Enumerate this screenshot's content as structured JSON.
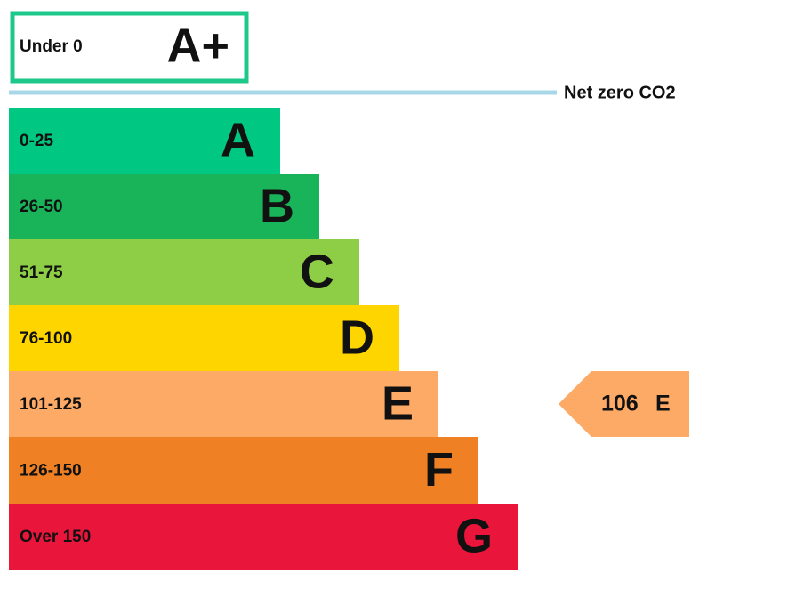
{
  "rating_plus": {
    "range": "Under 0",
    "letter": "A+",
    "color": "#1dc98a"
  },
  "net_zero_label": "Net zero CO2",
  "bands": [
    {
      "range": "0-25",
      "letter": "A",
      "color": "#00c781"
    },
    {
      "range": "26-50",
      "letter": "B",
      "color": "#19b459"
    },
    {
      "range": "51-75",
      "letter": "C",
      "color": "#8dce46"
    },
    {
      "range": "76-100",
      "letter": "D",
      "color": "#ffd500"
    },
    {
      "range": "101-125",
      "letter": "E",
      "color": "#fcaa65"
    },
    {
      "range": "126-150",
      "letter": "F",
      "color": "#ef8023"
    },
    {
      "range": "Over 150",
      "letter": "G",
      "color": "#e9153b"
    }
  ],
  "current": {
    "score": 106,
    "letter": "E",
    "color": "#fcaa65"
  }
}
